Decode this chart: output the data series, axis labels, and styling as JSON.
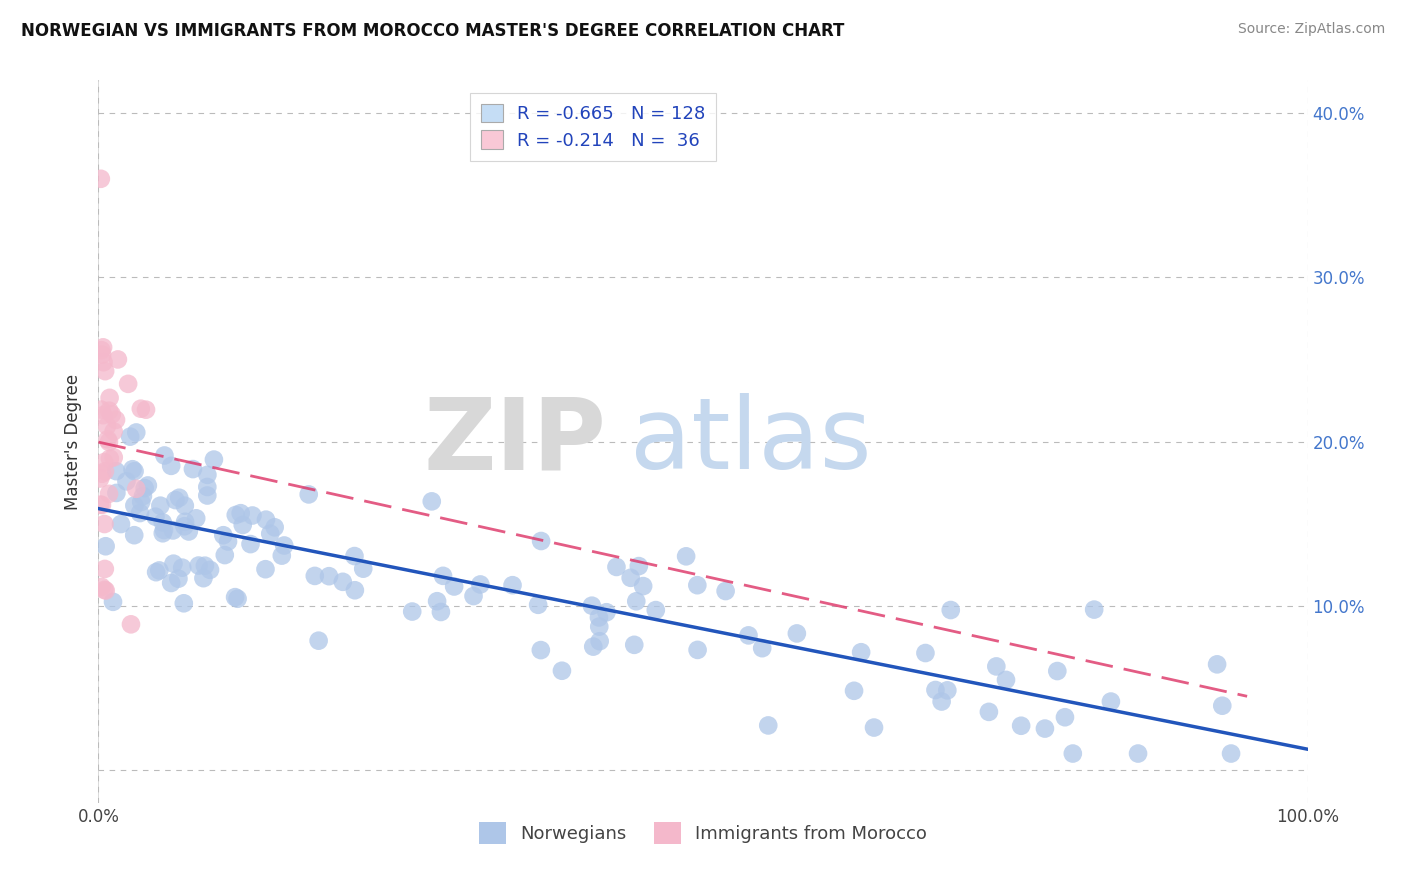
{
  "title": "NORWEGIAN VS IMMIGRANTS FROM MOROCCO MASTER'S DEGREE CORRELATION CHART",
  "source": "Source: ZipAtlas.com",
  "ylabel": "Master's Degree",
  "legend_labels": [
    "Norwegians",
    "Immigrants from Morocco"
  ],
  "R_norwegian": -0.665,
  "N_norwegian": 128,
  "R_morocco": -0.214,
  "N_morocco": 36,
  "norwegian_color": "#aec6e8",
  "morocco_color": "#f4b8cb",
  "norwegian_line_color": "#2255bb",
  "morocco_line_color": "#dd3366",
  "background_color": "#ffffff",
  "grid_color": "#bbbbbb",
  "xlim": [
    0.0,
    1.0
  ],
  "ylim": [
    -0.02,
    0.42
  ],
  "xticks": [
    0.0,
    1.0
  ],
  "xticklabels": [
    "0.0%",
    "100.0%"
  ],
  "yticks": [
    0.0,
    0.1,
    0.2,
    0.3,
    0.4
  ],
  "yticklabels_right": [
    "",
    "10.0%",
    "20.0%",
    "30.0%",
    "40.0%"
  ],
  "watermark_zip": "ZIP",
  "watermark_atlas": "atlas"
}
